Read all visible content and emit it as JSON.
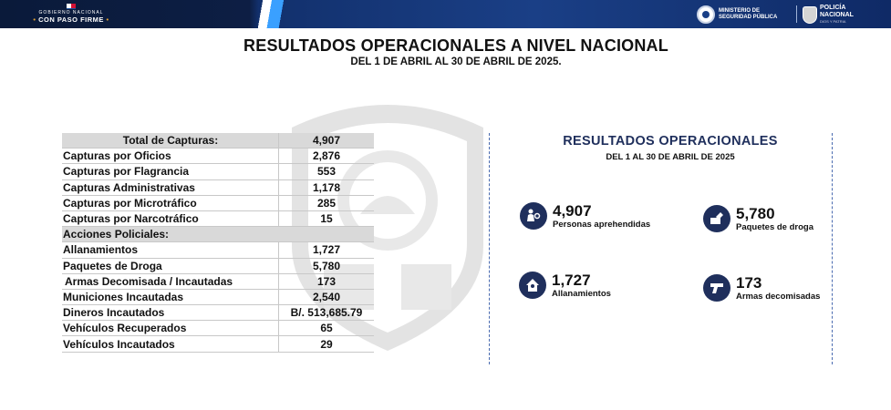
{
  "header": {
    "gov_line1": "GOBIERNO NACIONAL",
    "gov_line2": "CON PASO FIRME",
    "ministry_line1": "MINISTERIO DE",
    "ministry_line2": "SEGURIDAD PÚBLICA",
    "police_line1": "POLICÍA",
    "police_line2": "NACIONAL",
    "police_motto": "DIOS Y PATRIA"
  },
  "title": "RESULTADOS OPERACIONALES A NIVEL NACIONAL",
  "subtitle": "DEL 1 DE ABRIL AL 30 DE ABRIL DE 2025.",
  "table": {
    "rows": [
      {
        "label": "Total de Capturas:",
        "value": "4,907"
      },
      {
        "label": "Capturas por Oficios",
        "value": "2,876"
      },
      {
        "label": "Capturas por Flagrancia",
        "value": "553"
      },
      {
        "label": "Capturas Administrativas",
        "value": "1,178"
      },
      {
        "label": "Capturas por Microtráfico",
        "value": "285"
      },
      {
        "label": "Capturas por Narcotráfico",
        "value": "15"
      },
      {
        "label": "Acciones Policiales:",
        "value": ""
      },
      {
        "label": "Allanamientos",
        "value": "1,727"
      },
      {
        "label": "Paquetes de Droga",
        "value": "5,780"
      },
      {
        "label": " Armas Decomisada / Incautadas",
        "value": "173"
      },
      {
        "label": "Municiones Incautadas",
        "value": "2,540"
      },
      {
        "label": "Dineros Incautados",
        "value": "B/. 513,685.79"
      },
      {
        "label": "Vehículos Recuperados",
        "value": "65"
      },
      {
        "label": "Vehículos Incautados",
        "value": "29"
      }
    ]
  },
  "panel": {
    "title": "RESULTADOS OPERACIONALES",
    "subtitle": "DEL 1 AL 30 DE ABRIL DE 2025",
    "stats": [
      {
        "value": "4,907",
        "label": "Personas aprehendidas",
        "icon": "arrest-icon"
      },
      {
        "value": "5,780",
        "label": "Paquetes de droga",
        "icon": "drug-package-icon"
      },
      {
        "value": "1,727",
        "label": "Allanamientos",
        "icon": "house-raid-icon"
      },
      {
        "value": "173",
        "label": "Armas decomisadas",
        "icon": "pistol-icon"
      }
    ]
  },
  "colors": {
    "header_dark": "#0d1e44",
    "header_blue": "#1a3f86",
    "accent_navy": "#1f2f5c",
    "table_shade": "#d9d9d9"
  }
}
